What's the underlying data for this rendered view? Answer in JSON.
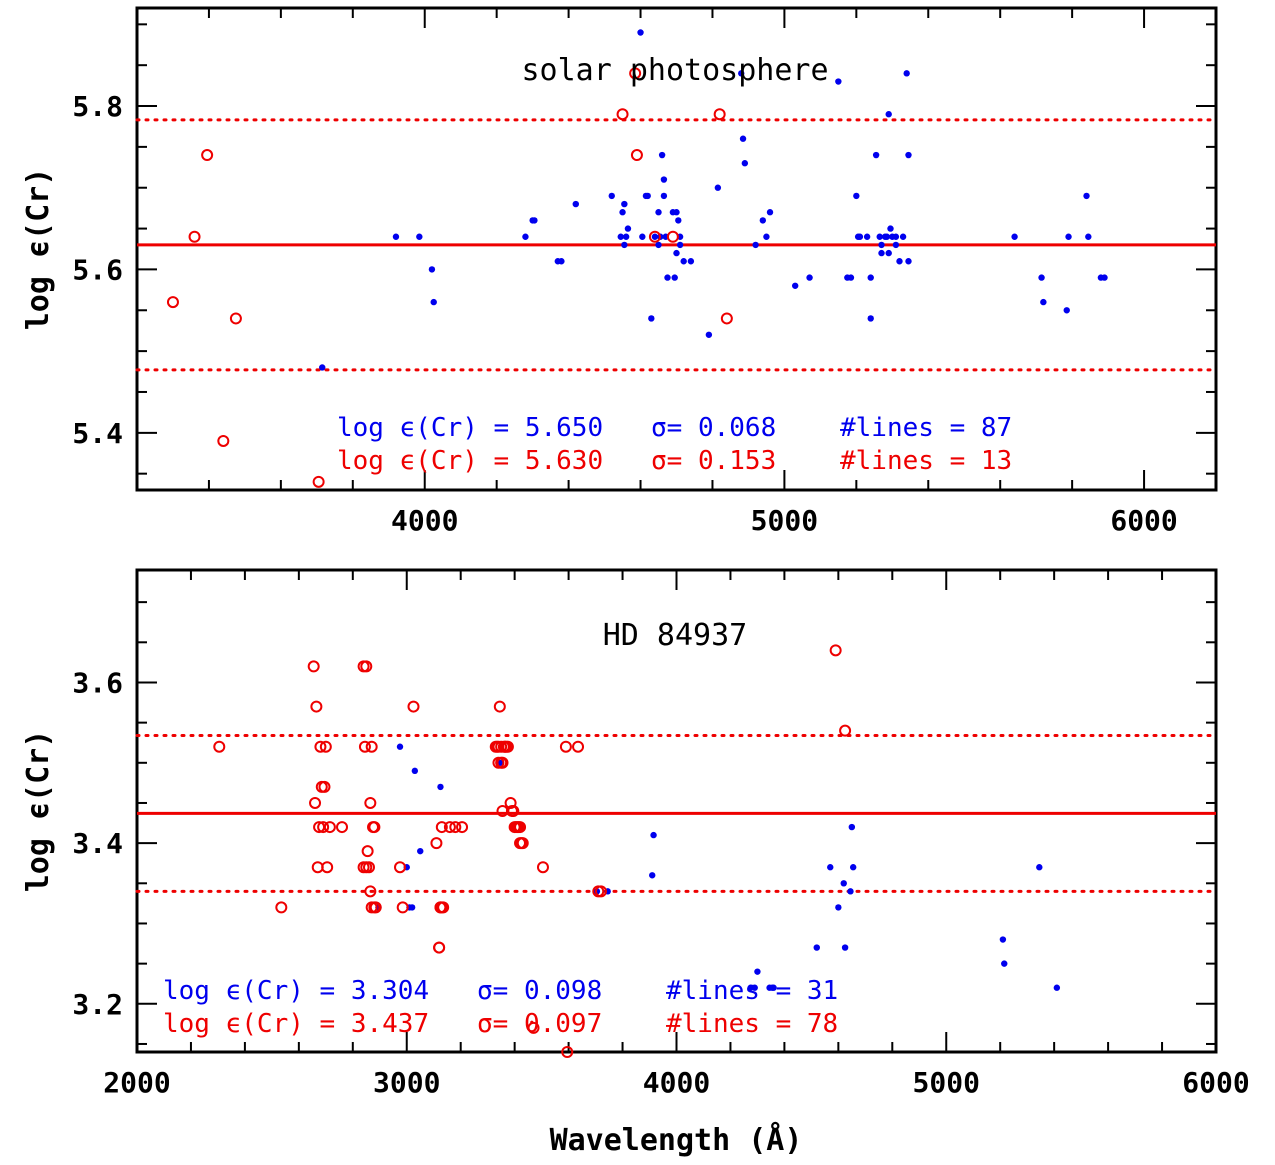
{
  "colors": {
    "blue": "#0000ee",
    "red": "#ee0000",
    "axis": "#000000"
  },
  "chart_data": [
    {
      "type": "scatter",
      "title": "solar photosphere",
      "xlabel": "",
      "ylabel": "log ϵ(Cr)",
      "xlim": [
        3200,
        6200
      ],
      "ylim": [
        5.33,
        5.92
      ],
      "xticks": [
        4000,
        5000,
        6000
      ],
      "xtick_labels": [
        "4000",
        "5000",
        "6000"
      ],
      "yticks": [
        5.4,
        5.6,
        5.8
      ],
      "ytick_labels": [
        "5.4",
        "5.6",
        "5.8"
      ],
      "hlines": [
        {
          "y": 5.63,
          "style": "solid",
          "color": "red"
        },
        {
          "y": 5.783,
          "style": "dotted",
          "color": "red"
        },
        {
          "y": 5.477,
          "style": "dotted",
          "color": "red"
        }
      ],
      "series": [
        {
          "marker": "filled-dot",
          "color": "blue",
          "x": [
            3715,
            3920,
            3985,
            4020,
            4025,
            4280,
            4300,
            4305,
            4370,
            4380,
            4420,
            4520,
            4545,
            4550,
            4555,
            4560,
            4600,
            4605,
            4615,
            4620,
            4630,
            4640,
            4650,
            4655,
            4660,
            4665,
            4665,
            4670,
            4675,
            4690,
            4695,
            4700,
            4705,
            4710,
            4720,
            4740,
            4790,
            4815,
            4880,
            4885,
            4890,
            4920,
            4940,
            4950,
            4960,
            5070,
            5150,
            5175,
            5185,
            5200,
            5205,
            5210,
            5230,
            5240,
            5240,
            5255,
            5265,
            5270,
            5280,
            5285,
            5290,
            5290,
            5295,
            5300,
            5310,
            5320,
            5330,
            5340,
            5345,
            5345,
            5640,
            5715,
            5720,
            5785,
            5790,
            5840,
            5845,
            5880,
            5890,
            4555,
            4565,
            4650,
            4700,
            4710,
            5030,
            5270,
            5310
          ],
          "y": [
            5.48,
            5.64,
            5.64,
            5.6,
            5.56,
            5.64,
            5.66,
            5.66,
            5.61,
            5.61,
            5.68,
            5.69,
            5.64,
            5.67,
            5.68,
            5.64,
            5.89,
            5.64,
            5.69,
            5.69,
            5.54,
            5.64,
            5.67,
            5.64,
            5.74,
            5.69,
            5.71,
            5.64,
            5.59,
            5.67,
            5.59,
            5.67,
            5.66,
            5.63,
            5.61,
            5.61,
            5.52,
            5.7,
            5.84,
            5.76,
            5.73,
            5.63,
            5.66,
            5.64,
            5.67,
            5.59,
            5.83,
            5.59,
            5.59,
            5.69,
            5.64,
            5.64,
            5.64,
            5.59,
            5.54,
            5.74,
            5.64,
            5.62,
            5.64,
            5.64,
            5.79,
            5.62,
            5.65,
            5.64,
            5.64,
            5.61,
            5.64,
            5.84,
            5.74,
            5.61,
            5.64,
            5.59,
            5.56,
            5.55,
            5.64,
            5.69,
            5.64,
            5.59,
            5.59,
            5.63,
            5.65,
            5.63,
            5.62,
            5.64,
            5.58,
            5.63,
            5.63
          ]
        },
        {
          "marker": "open-circle",
          "color": "red",
          "x": [
            3300,
            3360,
            3395,
            3440,
            3475,
            3705,
            4550,
            4585,
            4590,
            4640,
            4690,
            4820,
            4840
          ],
          "y": [
            5.56,
            5.64,
            5.74,
            5.39,
            5.54,
            5.34,
            5.79,
            5.84,
            5.74,
            5.64,
            5.64,
            5.79,
            5.54
          ]
        }
      ],
      "annotations": [
        {
          "text": "log ϵ(Cr) = 5.650",
          "color": "blue"
        },
        {
          "text": "σ= 0.068",
          "color": "blue"
        },
        {
          "text": "#lines = 87",
          "color": "blue"
        },
        {
          "text": "log ϵ(Cr) = 5.630",
          "color": "red"
        },
        {
          "text": "σ= 0.153",
          "color": "red"
        },
        {
          "text": "#lines = 13",
          "color": "red"
        }
      ]
    },
    {
      "type": "scatter",
      "title": "HD 84937",
      "xlabel": "Wavelength (Å)",
      "ylabel": "log ϵ(Cr)",
      "xlim": [
        2000,
        6000
      ],
      "ylim": [
        3.14,
        3.74
      ],
      "xticks": [
        2000,
        3000,
        4000,
        5000,
        6000
      ],
      "xtick_labels": [
        "2000",
        "3000",
        "4000",
        "5000",
        "6000"
      ],
      "yticks": [
        3.2,
        3.4,
        3.6
      ],
      "ytick_labels": [
        "3.2",
        "3.4",
        "3.6"
      ],
      "hlines": [
        {
          "y": 3.437,
          "style": "solid",
          "color": "red"
        },
        {
          "y": 3.534,
          "style": "dotted",
          "color": "red"
        },
        {
          "y": 3.34,
          "style": "dotted",
          "color": "red"
        }
      ],
      "series": [
        {
          "marker": "filled-dot",
          "color": "blue",
          "x": [
            2975,
            3000,
            3020,
            3030,
            3050,
            3745,
            3910,
            3915,
            4290,
            4300,
            4345,
            4355,
            4520,
            4570,
            4600,
            4620,
            4625,
            4645,
            4650,
            4655,
            5210,
            5215,
            5345,
            5410,
            4275,
            4360,
            2895,
            3010,
            3705,
            3345,
            3125
          ],
          "y": [
            3.52,
            3.37,
            3.32,
            3.49,
            3.39,
            3.34,
            3.36,
            3.41,
            3.22,
            3.24,
            3.22,
            3.22,
            3.27,
            3.37,
            3.32,
            3.35,
            3.27,
            3.34,
            3.42,
            3.37,
            3.28,
            3.25,
            3.37,
            3.22,
            3.22,
            3.22,
            3.32,
            3.32,
            3.34,
            3.5,
            3.47
          ]
        },
        {
          "marker": "open-circle",
          "color": "red",
          "x": [
            2305,
            2535,
            2655,
            2665,
            2670,
            2675,
            2680,
            2685,
            2690,
            2700,
            2705,
            2715,
            2760,
            2840,
            2845,
            2850,
            2855,
            2860,
            2865,
            2870,
            2875,
            2880,
            2885,
            2975,
            2985,
            3025,
            3110,
            3120,
            3125,
            3130,
            3135,
            3160,
            3180,
            3205,
            3330,
            3335,
            3340,
            3345,
            3350,
            3355,
            3360,
            3365,
            3375,
            3385,
            3395,
            3405,
            3415,
            3420,
            3430,
            3505,
            3590,
            3635,
            3710,
            3720,
            3470,
            3595,
            4590,
            4625,
            2660,
            2695,
            2850,
            2865,
            2870,
            3120,
            3125,
            3340,
            3355,
            3365,
            3400,
            3410,
            3420,
            2840,
            2880,
            3130,
            3350,
            3370,
            3390,
            3425
          ],
          "y": [
            3.52,
            3.32,
            3.62,
            3.57,
            3.37,
            3.42,
            3.52,
            3.47,
            3.42,
            3.52,
            3.37,
            3.42,
            3.42,
            3.62,
            3.52,
            3.37,
            3.39,
            3.37,
            3.34,
            3.32,
            3.42,
            3.32,
            3.32,
            3.37,
            3.32,
            3.57,
            3.4,
            3.27,
            3.32,
            3.42,
            3.32,
            3.42,
            3.42,
            3.42,
            3.52,
            3.52,
            3.5,
            3.57,
            3.5,
            3.44,
            3.52,
            3.52,
            3.52,
            3.45,
            3.44,
            3.42,
            3.42,
            3.4,
            3.4,
            3.37,
            3.52,
            3.52,
            3.34,
            3.34,
            3.17,
            3.14,
            3.64,
            3.54,
            3.45,
            3.47,
            3.62,
            3.45,
            3.52,
            3.27,
            3.32,
            3.52,
            3.5,
            3.52,
            3.42,
            3.42,
            3.42,
            3.37,
            3.42,
            3.32,
            3.52,
            3.52,
            3.44,
            3.4
          ]
        }
      ],
      "annotations": [
        {
          "text": "log ϵ(Cr) = 3.304",
          "color": "blue"
        },
        {
          "text": "σ= 0.098",
          "color": "blue"
        },
        {
          "text": "#lines = 31",
          "color": "blue"
        },
        {
          "text": "log ϵ(Cr) = 3.437",
          "color": "red"
        },
        {
          "text": "σ= 0.097",
          "color": "red"
        },
        {
          "text": "#lines = 78",
          "color": "red"
        }
      ]
    }
  ]
}
